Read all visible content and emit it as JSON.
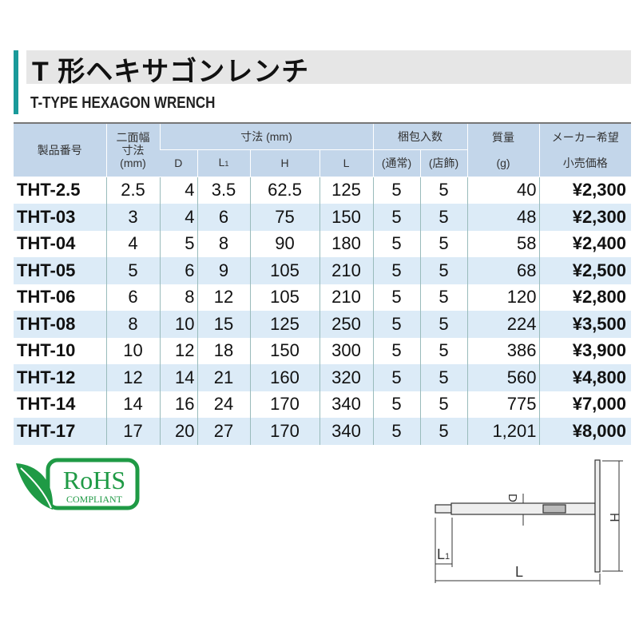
{
  "title": "T 形ヘキサゴンレンチ",
  "subtitle": "T-TYPE HEXAGON WRENCH",
  "accent_color": "#1a9a9a",
  "table": {
    "headers": {
      "model": "製品番号",
      "width_a": "二面幅",
      "width_b": "寸法",
      "width_c": "(mm)",
      "dims": "寸法 (mm)",
      "D": "D",
      "L1": "L",
      "L1_sub": "1",
      "H": "H",
      "L": "L",
      "pack": "梱包入数",
      "pack_normal": "(通常)",
      "pack_store": "(店飾)",
      "mass": "質量",
      "mass_unit": "(g)",
      "price_a": "メーカー希望",
      "price_b": "小売価格"
    },
    "rows": [
      [
        "THT-2.5",
        "2.5",
        "4",
        "3.5",
        "62.5",
        "125",
        "5",
        "5",
        "40",
        "¥2,300"
      ],
      [
        "THT-03",
        "3",
        "4",
        "6",
        "75",
        "150",
        "5",
        "5",
        "48",
        "¥2,300"
      ],
      [
        "THT-04",
        "4",
        "5",
        "8",
        "90",
        "180",
        "5",
        "5",
        "58",
        "¥2,400"
      ],
      [
        "THT-05",
        "5",
        "6",
        "9",
        "105",
        "210",
        "5",
        "5",
        "68",
        "¥2,500"
      ],
      [
        "THT-06",
        "6",
        "8",
        "12",
        "105",
        "210",
        "5",
        "5",
        "120",
        "¥2,800"
      ],
      [
        "THT-08",
        "8",
        "10",
        "15",
        "125",
        "250",
        "5",
        "5",
        "224",
        "¥3,500"
      ],
      [
        "THT-10",
        "10",
        "12",
        "18",
        "150",
        "300",
        "5",
        "5",
        "386",
        "¥3,900"
      ],
      [
        "THT-12",
        "12",
        "14",
        "21",
        "160",
        "320",
        "5",
        "5",
        "560",
        "¥4,800"
      ],
      [
        "THT-14",
        "14",
        "16",
        "24",
        "170",
        "340",
        "5",
        "5",
        "775",
        "¥7,000"
      ],
      [
        "THT-17",
        "17",
        "20",
        "27",
        "170",
        "340",
        "5",
        "5",
        "1,201",
        "¥8,000"
      ]
    ]
  },
  "rohs": {
    "main": "RoHS",
    "sub": "COMPLIANT",
    "color": "#1f9a45"
  },
  "diagram": {
    "D": "D",
    "H": "H",
    "L1": "L",
    "L1_sub": "1",
    "L": "L"
  }
}
